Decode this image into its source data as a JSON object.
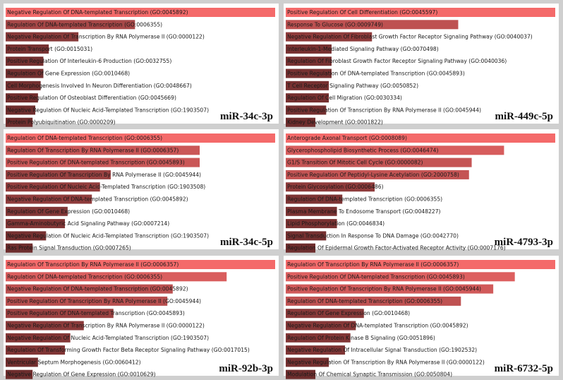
{
  "chart_data": [
    {
      "type": "bar",
      "orientation": "horizontal",
      "title": "miR-34c-3p",
      "xlim": [
        0,
        100
      ],
      "color_scale": [
        "#6e2d2d",
        "#f46a6a"
      ],
      "categories": [
        "Negative Regulation Of DNA-templated Transcription (GO:0045892)",
        "Regulation Of DNA-templated Transcription (GO:0006355)",
        "Negative Regulation Of Transcription By RNA Polymerase II (GO:0000122)",
        "Protein Transport (GO:0015031)",
        "Positive Regulation Of Interleukin-6 Production (GO:0032755)",
        "Regulation Of Gene Expression (GO:0010468)",
        "Cell Morphogenesis Involved In Neuron Differentiation (GO:0048667)",
        "Positive Regulation Of Osteoblast Differentiation (GO:0045669)",
        "Negative Regulation Of Nucleic Acid-Templated Transcription (GO:1903507)",
        "Protein Polyubiquitination (GO:0000209)"
      ],
      "values": [
        100,
        48,
        27,
        16,
        14,
        14,
        13,
        12,
        11,
        10
      ]
    },
    {
      "type": "bar",
      "orientation": "horizontal",
      "title": "miR-449c-5p",
      "xlim": [
        0,
        100
      ],
      "color_scale": [
        "#6e2d2d",
        "#f46a6a"
      ],
      "categories": [
        "Positive Regulation Of Cell Differentiation (GO:0045597)",
        "Response To Glucose (GO:0009749)",
        "Negative Regulation Of Fibroblast Growth Factor Receptor Signaling Pathway (GO:0040037)",
        "Interleukin-1-Mediated Signaling Pathway (GO:0070498)",
        "Regulation Of Fibroblast Growth Factor Receptor Signaling Pathway (GO:0040036)",
        "Positive Regulation Of DNA-templated Transcription (GO:0045893)",
        "T Cell Receptor Signaling Pathway (GO:0050852)",
        "Regulation Of Cell Migration (GO:0030334)",
        "Positive Regulation Of Transcription By RNA Polymerase II (GO:0045944)",
        "Kidney Development (GO:0001822)"
      ],
      "values": [
        100,
        64,
        32,
        17,
        17,
        17,
        16,
        16,
        15,
        11
      ]
    },
    {
      "type": "bar",
      "orientation": "horizontal",
      "title": "miR-34c-5p",
      "xlim": [
        0,
        100
      ],
      "color_scale": [
        "#6e2d2d",
        "#f46a6a"
      ],
      "categories": [
        "Regulation Of DNA-templated Transcription (GO:0006355)",
        "Regulation Of Transcription By RNA Polymerase II (GO:0006357)",
        "Positive Regulation Of DNA-templated Transcription (GO:0045893)",
        "Positive Regulation Of Transcription By RNA Polymerase II (GO:0045944)",
        "Positive Regulation Of Nucleic Acid-Templated Transcription (GO:1903508)",
        "Negative Regulation Of DNA-templated Transcription (GO:0045892)",
        "Regulation Of Gene Expression (GO:0010468)",
        "Gamma-Aminobutyric Acid Signaling Pathway (GO:0007214)",
        "Negative Regulation Of Nucleic Acid-Templated Transcription (GO:1903507)",
        "Ras Protein Signal Transduction (GO:0007265)"
      ],
      "values": [
        100,
        72,
        72,
        39,
        35,
        32,
        23,
        22,
        15,
        10
      ]
    },
    {
      "type": "bar",
      "orientation": "horizontal",
      "title": "miR-4793-3p",
      "xlim": [
        0,
        100
      ],
      "color_scale": [
        "#6e2d2d",
        "#f46a6a"
      ],
      "categories": [
        "Anterograde Axonal Transport (GO:0008089)",
        "Glycerophospholipid Biosynthetic Process (GO:0046474)",
        "G1/S Transition Of Mitotic Cell Cycle (GO:0000082)",
        "Positive Regulation Of Peptidyl-Lysine Acetylation (GO:2000758)",
        "Protein Glycosylation (GO:0006486)",
        "Regulation Of DNA-templated Transcription (GO:0006355)",
        "Plasma Membrane To Endosome Transport (GO:0048227)",
        "Lipid Phosphorylation (GO:0046834)",
        "Signal Transduction In Response To DNA Damage (GO:0042770)",
        "Regulation Of Epidermal Growth Factor-Activated Receptor Activity (GO:0007176)"
      ],
      "values": [
        100,
        81,
        69,
        68,
        33,
        21,
        19,
        19,
        15,
        11
      ]
    },
    {
      "type": "bar",
      "orientation": "horizontal",
      "title": "miR-92b-3p",
      "xlim": [
        0,
        100
      ],
      "color_scale": [
        "#6e2d2d",
        "#f46a6a"
      ],
      "categories": [
        "Regulation Of Transcription By RNA Polymerase II (GO:0006357)",
        "Regulation Of DNA-templated Transcription (GO:0006355)",
        "Negative Regulation Of DNA-templated Transcription (GO:0045892)",
        "Positive Regulation Of Transcription By RNA Polymerase II (GO:0045944)",
        "Positive Regulation Of DNA-templated Transcription (GO:0045893)",
        "Negative Regulation Of Transcription By RNA Polymerase II (GO:0000122)",
        "Negative Regulation Of Nucleic Acid-Templated Transcription (GO:1903507)",
        "Regulation Of Transforming Growth Factor Beta Receptor Signaling Pathway (GO:0017015)",
        "Ventricular Septum Morphogenesis (GO:0060412)",
        "Negative Regulation Of Gene Expression (GO:0010629)"
      ],
      "values": [
        100,
        82,
        62,
        60,
        40,
        29,
        24,
        22,
        12,
        10
      ]
    },
    {
      "type": "bar",
      "orientation": "horizontal",
      "title": "miR-6732-5p",
      "xlim": [
        0,
        100
      ],
      "color_scale": [
        "#6e2d2d",
        "#f46a6a"
      ],
      "categories": [
        "Regulation Of Transcription By RNA Polymerase II (GO:0006357)",
        "Positive Regulation Of DNA-templated Transcription (GO:0045893)",
        "Positive Regulation Of Transcription By RNA Polymerase II (GO:0045944)",
        "Regulation Of DNA-templated Transcription (GO:0006355)",
        "Regulation Of Gene Expression (GO:0010468)",
        "Negative Regulation Of DNA-templated Transcription (GO:0045892)",
        "Regulation Of Protein Kinase B Signaling (GO:0051896)",
        "Negative Regulation Of Intracellular Signal Transduction (GO:1902532)",
        "Negative Regulation Of Transcription By RNA Polymerase II (GO:0000122)",
        "Modulation Of Chemical Synaptic Transmission (GO:0050804)"
      ],
      "values": [
        100,
        85,
        77,
        65,
        29,
        26,
        24,
        22,
        16,
        11
      ]
    }
  ]
}
